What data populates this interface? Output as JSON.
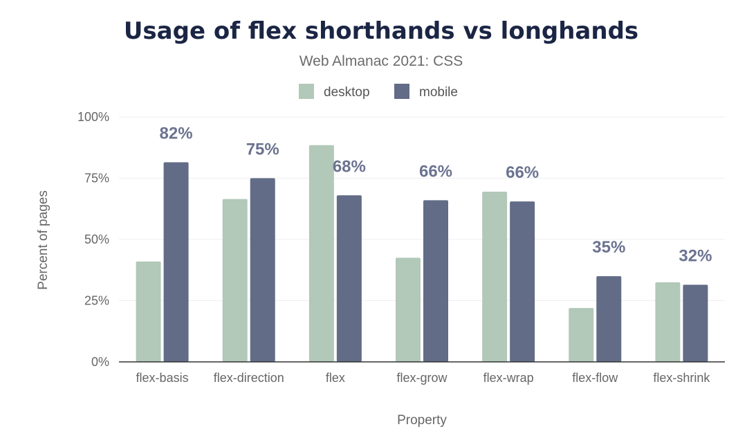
{
  "chart_data": {
    "type": "bar",
    "title": "Usage of flex shorthands vs longhands",
    "subtitle": "Web Almanac 2021: CSS",
    "xlabel": "Property",
    "ylabel": "Percent of pages",
    "ylim": [
      0,
      100
    ],
    "yticks": [
      0,
      25,
      50,
      75,
      100
    ],
    "ytick_labels": [
      "0%",
      "25%",
      "50%",
      "75%",
      "100%"
    ],
    "grid": true,
    "legend_position": "top-center",
    "categories": [
      "flex-basis",
      "flex-direction",
      "flex",
      "flex-grow",
      "flex-wrap",
      "flex-flow",
      "flex-shrink"
    ],
    "series": [
      {
        "name": "desktop",
        "color": "#b2c8b9",
        "values": [
          41,
          66.5,
          88.5,
          42.5,
          69.5,
          22,
          32.5
        ]
      },
      {
        "name": "mobile",
        "color": "#626c87",
        "values": [
          81.5,
          75,
          68,
          66,
          65.5,
          35,
          31.5
        ]
      }
    ],
    "data_labels": [
      "82%",
      "75%",
      "68%",
      "66%",
      "66%",
      "35%",
      "32%"
    ]
  }
}
